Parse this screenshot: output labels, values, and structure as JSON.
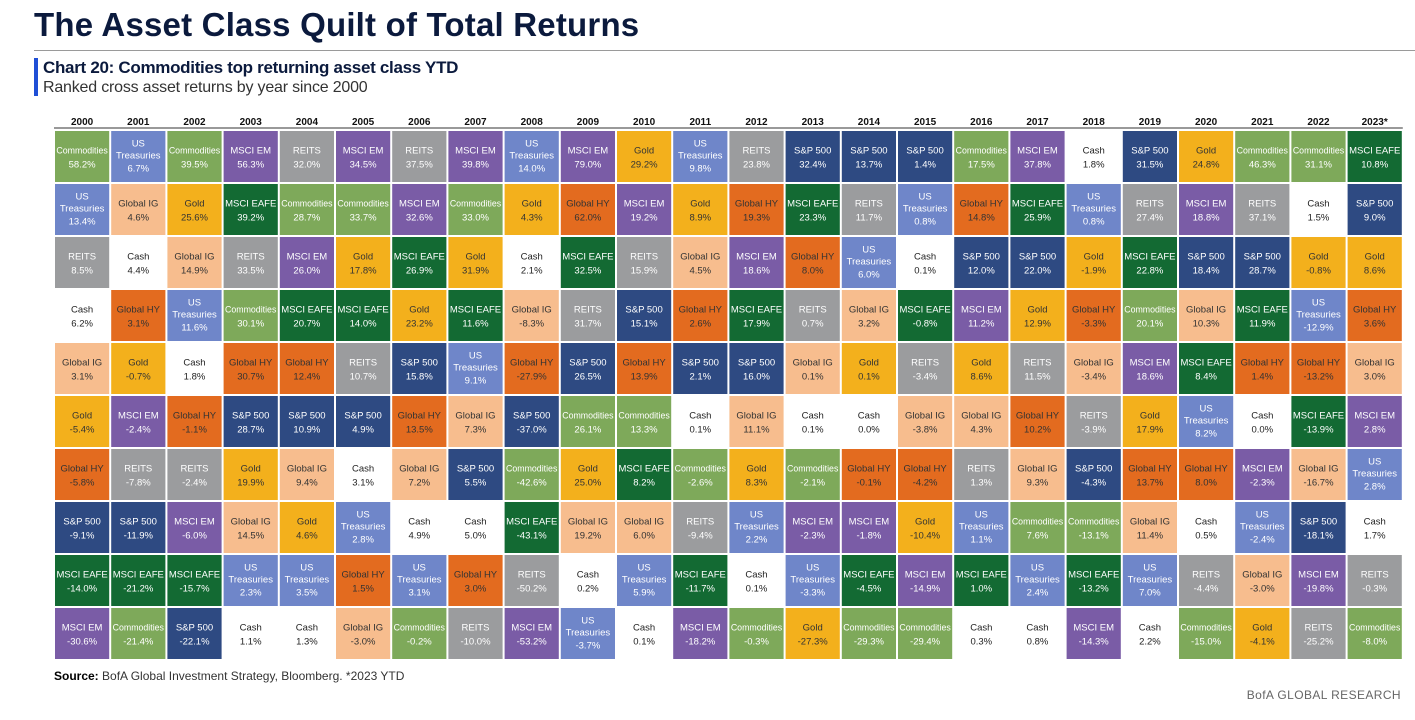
{
  "header": {
    "title": "The Asset Class Quilt of Total Returns",
    "chart_title": "Chart 20: Commodities top returning asset class YTD",
    "chart_subtitle": "Ranked cross asset returns by year since 2000"
  },
  "footer": {
    "source_label": "Source:",
    "source_text": "BofA Global Investment Strategy, Bloomberg. *2023 YTD",
    "brand": "BofA GLOBAL RESEARCH"
  },
  "colors": {
    "Commodities": "#7ea95a",
    "US Treasuries": "#6f86c9",
    "Global IG": "#f7bd8e",
    "MSCI EM": "#7a5ca6",
    "REITS": "#9b9c9e",
    "Gold": "#f3b01c",
    "Global HY": "#e36b1f",
    "Cash": "#ffffff",
    "MSCI EAFE": "#136a33",
    "S&P 500": "#2e4a82"
  },
  "text_colors": {
    "Commodities": "#ffffff",
    "US Treasuries": "#ffffff",
    "Global IG": "#333333",
    "MSCI EM": "#ffffff",
    "REITS": "#ffffff",
    "Gold": "#333333",
    "Global HY": "#333333",
    "Cash": "#222222",
    "MSCI EAFE": "#ffffff",
    "S&P 500": "#ffffff"
  },
  "chart_data": {
    "type": "table",
    "title": "Chart 20: Commodities top returning asset class YTD",
    "subtitle": "Ranked cross asset returns by year since 2000",
    "years": [
      "2000",
      "2001",
      "2002",
      "2003",
      "2004",
      "2005",
      "2006",
      "2007",
      "2008",
      "2009",
      "2010",
      "2011",
      "2012",
      "2013",
      "2014",
      "2015",
      "2016",
      "2017",
      "2018",
      "2019",
      "2020",
      "2021",
      "2022",
      "2023*"
    ],
    "columns": [
      [
        [
          "Commodities",
          "58.2%"
        ],
        [
          "US Treasuries",
          "13.4%"
        ],
        [
          "REITS",
          "8.5%"
        ],
        [
          "Cash",
          "6.2%"
        ],
        [
          "Global IG",
          "3.1%"
        ],
        [
          "Gold",
          "-5.4%"
        ],
        [
          "Global HY",
          "-5.8%"
        ],
        [
          "S&P 500",
          "-9.1%"
        ],
        [
          "MSCI EAFE",
          "-14.0%"
        ],
        [
          "MSCI EM",
          "-30.6%"
        ]
      ],
      [
        [
          "US Treasuries",
          "6.7%"
        ],
        [
          "Global IG",
          "4.6%"
        ],
        [
          "Cash",
          "4.4%"
        ],
        [
          "Global HY",
          "3.1%"
        ],
        [
          "Gold",
          "-0.7%"
        ],
        [
          "MSCI EM",
          "-2.4%"
        ],
        [
          "REITS",
          "-7.8%"
        ],
        [
          "S&P 500",
          "-11.9%"
        ],
        [
          "MSCI EAFE",
          "-21.2%"
        ],
        [
          "Commodities",
          "-21.4%"
        ]
      ],
      [
        [
          "Commodities",
          "39.5%"
        ],
        [
          "Gold",
          "25.6%"
        ],
        [
          "Global IG",
          "14.9%"
        ],
        [
          "US Treasuries",
          "11.6%"
        ],
        [
          "Cash",
          "1.8%"
        ],
        [
          "Global HY",
          "-1.1%"
        ],
        [
          "REITS",
          "-2.4%"
        ],
        [
          "MSCI EM",
          "-6.0%"
        ],
        [
          "MSCI EAFE",
          "-15.7%"
        ],
        [
          "S&P 500",
          "-22.1%"
        ]
      ],
      [
        [
          "MSCI EM",
          "56.3%"
        ],
        [
          "MSCI EAFE",
          "39.2%"
        ],
        [
          "REITS",
          "33.5%"
        ],
        [
          "Commodities",
          "30.1%"
        ],
        [
          "Global HY",
          "30.7%"
        ],
        [
          "S&P 500",
          "28.7%"
        ],
        [
          "Gold",
          "19.9%"
        ],
        [
          "Global IG",
          "14.5%"
        ],
        [
          "US Treasuries",
          "2.3%"
        ],
        [
          "Cash",
          "1.1%"
        ]
      ],
      [
        [
          "REITS",
          "32.0%"
        ],
        [
          "Commodities",
          "28.7%"
        ],
        [
          "MSCI EM",
          "26.0%"
        ],
        [
          "MSCI EAFE",
          "20.7%"
        ],
        [
          "Global HY",
          "12.4%"
        ],
        [
          "S&P 500",
          "10.9%"
        ],
        [
          "Global IG",
          "9.4%"
        ],
        [
          "Gold",
          "4.6%"
        ],
        [
          "US Treasuries",
          "3.5%"
        ],
        [
          "Cash",
          "1.3%"
        ]
      ],
      [
        [
          "MSCI EM",
          "34.5%"
        ],
        [
          "Commodities",
          "33.7%"
        ],
        [
          "Gold",
          "17.8%"
        ],
        [
          "MSCI EAFE",
          "14.0%"
        ],
        [
          "REITS",
          "10.7%"
        ],
        [
          "S&P 500",
          "4.9%"
        ],
        [
          "Cash",
          "3.1%"
        ],
        [
          "US Treasuries",
          "2.8%"
        ],
        [
          "Global HY",
          "1.5%"
        ],
        [
          "Global IG",
          "-3.0%"
        ]
      ],
      [
        [
          "REITS",
          "37.5%"
        ],
        [
          "MSCI EM",
          "32.6%"
        ],
        [
          "MSCI EAFE",
          "26.9%"
        ],
        [
          "Gold",
          "23.2%"
        ],
        [
          "S&P 500",
          "15.8%"
        ],
        [
          "Global HY",
          "13.5%"
        ],
        [
          "Global IG",
          "7.2%"
        ],
        [
          "Cash",
          "4.9%"
        ],
        [
          "US Treasuries",
          "3.1%"
        ],
        [
          "Commodities",
          "-0.2%"
        ]
      ],
      [
        [
          "MSCI EM",
          "39.8%"
        ],
        [
          "Commodities",
          "33.0%"
        ],
        [
          "Gold",
          "31.9%"
        ],
        [
          "MSCI EAFE",
          "11.6%"
        ],
        [
          "US Treasuries",
          "9.1%"
        ],
        [
          "Global IG",
          "7.3%"
        ],
        [
          "S&P 500",
          "5.5%"
        ],
        [
          "Cash",
          "5.0%"
        ],
        [
          "Global HY",
          "3.0%"
        ],
        [
          "REITS",
          "-10.0%"
        ]
      ],
      [
        [
          "US Treasuries",
          "14.0%"
        ],
        [
          "Gold",
          "4.3%"
        ],
        [
          "Cash",
          "2.1%"
        ],
        [
          "Global IG",
          "-8.3%"
        ],
        [
          "Global HY",
          "-27.9%"
        ],
        [
          "S&P 500",
          "-37.0%"
        ],
        [
          "Commodities",
          "-42.6%"
        ],
        [
          "MSCI EAFE",
          "-43.1%"
        ],
        [
          "REITS",
          "-50.2%"
        ],
        [
          "MSCI EM",
          "-53.2%"
        ]
      ],
      [
        [
          "MSCI EM",
          "79.0%"
        ],
        [
          "Global HY",
          "62.0%"
        ],
        [
          "MSCI EAFE",
          "32.5%"
        ],
        [
          "REITS",
          "31.7%"
        ],
        [
          "S&P 500",
          "26.5%"
        ],
        [
          "Commodities",
          "26.1%"
        ],
        [
          "Gold",
          "25.0%"
        ],
        [
          "Global IG",
          "19.2%"
        ],
        [
          "Cash",
          "0.2%"
        ],
        [
          "US Treasuries",
          "-3.7%"
        ]
      ],
      [
        [
          "Gold",
          "29.2%"
        ],
        [
          "MSCI EM",
          "19.2%"
        ],
        [
          "REITS",
          "15.9%"
        ],
        [
          "S&P 500",
          "15.1%"
        ],
        [
          "Global HY",
          "13.9%"
        ],
        [
          "Commodities",
          "13.3%"
        ],
        [
          "MSCI EAFE",
          "8.2%"
        ],
        [
          "Global IG",
          "6.0%"
        ],
        [
          "US Treasuries",
          "5.9%"
        ],
        [
          "Cash",
          "0.1%"
        ]
      ],
      [
        [
          "US Treasuries",
          "9.8%"
        ],
        [
          "Gold",
          "8.9%"
        ],
        [
          "Global IG",
          "4.5%"
        ],
        [
          "Global HY",
          "2.6%"
        ],
        [
          "S&P 500",
          "2.1%"
        ],
        [
          "Cash",
          "0.1%"
        ],
        [
          "Commodities",
          "-2.6%"
        ],
        [
          "REITS",
          "-9.4%"
        ],
        [
          "MSCI EAFE",
          "-11.7%"
        ],
        [
          "MSCI EM",
          "-18.2%"
        ]
      ],
      [
        [
          "REITS",
          "23.8%"
        ],
        [
          "Global HY",
          "19.3%"
        ],
        [
          "MSCI EM",
          "18.6%"
        ],
        [
          "MSCI EAFE",
          "17.9%"
        ],
        [
          "S&P 500",
          "16.0%"
        ],
        [
          "Global IG",
          "11.1%"
        ],
        [
          "Gold",
          "8.3%"
        ],
        [
          "US Treasuries",
          "2.2%"
        ],
        [
          "Cash",
          "0.1%"
        ],
        [
          "Commodities",
          "-0.3%"
        ]
      ],
      [
        [
          "S&P 500",
          "32.4%"
        ],
        [
          "MSCI EAFE",
          "23.3%"
        ],
        [
          "Global HY",
          "8.0%"
        ],
        [
          "REITS",
          "0.7%"
        ],
        [
          "Global IG",
          "0.1%"
        ],
        [
          "Cash",
          "0.1%"
        ],
        [
          "Commodities",
          "-2.1%"
        ],
        [
          "MSCI EM",
          "-2.3%"
        ],
        [
          "US Treasuries",
          "-3.3%"
        ],
        [
          "Gold",
          "-27.3%"
        ]
      ],
      [
        [
          "S&P 500",
          "13.7%"
        ],
        [
          "REITS",
          "11.7%"
        ],
        [
          "US Treasuries",
          "6.0%"
        ],
        [
          "Global IG",
          "3.2%"
        ],
        [
          "Gold",
          "0.1%"
        ],
        [
          "Cash",
          "0.0%"
        ],
        [
          "Global HY",
          "-0.1%"
        ],
        [
          "MSCI EM",
          "-1.8%"
        ],
        [
          "MSCI EAFE",
          "-4.5%"
        ],
        [
          "Commodities",
          "-29.3%"
        ]
      ],
      [
        [
          "S&P 500",
          "1.4%"
        ],
        [
          "US Treasuries",
          "0.8%"
        ],
        [
          "Cash",
          "0.1%"
        ],
        [
          "MSCI EAFE",
          "-0.8%"
        ],
        [
          "REITS",
          "-3.4%"
        ],
        [
          "Global IG",
          "-3.8%"
        ],
        [
          "Global HY",
          "-4.2%"
        ],
        [
          "Gold",
          "-10.4%"
        ],
        [
          "MSCI EM",
          "-14.9%"
        ],
        [
          "Commodities",
          "-29.4%"
        ]
      ],
      [
        [
          "Commodities",
          "17.5%"
        ],
        [
          "Global HY",
          "14.8%"
        ],
        [
          "S&P 500",
          "12.0%"
        ],
        [
          "MSCI EM",
          "11.2%"
        ],
        [
          "Gold",
          "8.6%"
        ],
        [
          "Global IG",
          "4.3%"
        ],
        [
          "REITS",
          "1.3%"
        ],
        [
          "US Treasuries",
          "1.1%"
        ],
        [
          "MSCI EAFE",
          "1.0%"
        ],
        [
          "Cash",
          "0.3%"
        ]
      ],
      [
        [
          "MSCI EM",
          "37.8%"
        ],
        [
          "MSCI EAFE",
          "25.9%"
        ],
        [
          "S&P 500",
          "22.0%"
        ],
        [
          "Gold",
          "12.9%"
        ],
        [
          "REITS",
          "11.5%"
        ],
        [
          "Global HY",
          "10.2%"
        ],
        [
          "Global IG",
          "9.3%"
        ],
        [
          "Commodities",
          "7.6%"
        ],
        [
          "US Treasuries",
          "2.4%"
        ],
        [
          "Cash",
          "0.8%"
        ]
      ],
      [
        [
          "Cash",
          "1.8%"
        ],
        [
          "US Treasuries",
          "0.8%"
        ],
        [
          "Gold",
          "-1.9%"
        ],
        [
          "Global HY",
          "-3.3%"
        ],
        [
          "Global IG",
          "-3.4%"
        ],
        [
          "REITS",
          "-3.9%"
        ],
        [
          "S&P 500",
          "-4.3%"
        ],
        [
          "Commodities",
          "-13.1%"
        ],
        [
          "MSCI EAFE",
          "-13.2%"
        ],
        [
          "MSCI EM",
          "-14.3%"
        ]
      ],
      [
        [
          "S&P 500",
          "31.5%"
        ],
        [
          "REITS",
          "27.4%"
        ],
        [
          "MSCI EAFE",
          "22.8%"
        ],
        [
          "Commodities",
          "20.1%"
        ],
        [
          "MSCI EM",
          "18.6%"
        ],
        [
          "Gold",
          "17.9%"
        ],
        [
          "Global HY",
          "13.7%"
        ],
        [
          "Global IG",
          "11.4%"
        ],
        [
          "US Treasuries",
          "7.0%"
        ],
        [
          "Cash",
          "2.2%"
        ]
      ],
      [
        [
          "Gold",
          "24.8%"
        ],
        [
          "MSCI EM",
          "18.8%"
        ],
        [
          "S&P 500",
          "18.4%"
        ],
        [
          "Global IG",
          "10.3%"
        ],
        [
          "MSCI EAFE",
          "8.4%"
        ],
        [
          "US Treasuries",
          "8.2%"
        ],
        [
          "Global HY",
          "8.0%"
        ],
        [
          "Cash",
          "0.5%"
        ],
        [
          "REITS",
          "-4.4%"
        ],
        [
          "Commodities",
          "-15.0%"
        ]
      ],
      [
        [
          "Commodities",
          "46.3%"
        ],
        [
          "REITS",
          "37.1%"
        ],
        [
          "S&P 500",
          "28.7%"
        ],
        [
          "MSCI EAFE",
          "11.9%"
        ],
        [
          "Global HY",
          "1.4%"
        ],
        [
          "Cash",
          "0.0%"
        ],
        [
          "MSCI EM",
          "-2.3%"
        ],
        [
          "US Treasuries",
          "-2.4%"
        ],
        [
          "Global IG",
          "-3.0%"
        ],
        [
          "Gold",
          "-4.1%"
        ]
      ],
      [
        [
          "Commodities",
          "31.1%"
        ],
        [
          "Cash",
          "1.5%"
        ],
        [
          "Gold",
          "-0.8%"
        ],
        [
          "US Treasuries",
          "-12.9%"
        ],
        [
          "Global HY",
          "-13.2%"
        ],
        [
          "MSCI EAFE",
          "-13.9%"
        ],
        [
          "Global IG",
          "-16.7%"
        ],
        [
          "S&P 500",
          "-18.1%"
        ],
        [
          "MSCI EM",
          "-19.8%"
        ],
        [
          "REITS",
          "-25.2%"
        ]
      ],
      [
        [
          "MSCI EAFE",
          "10.8%"
        ],
        [
          "S&P 500",
          "9.0%"
        ],
        [
          "Gold",
          "8.6%"
        ],
        [
          "Global HY",
          "3.6%"
        ],
        [
          "Global IG",
          "3.0%"
        ],
        [
          "MSCI EM",
          "2.8%"
        ],
        [
          "US Treasuries",
          "2.8%"
        ],
        [
          "Cash",
          "1.7%"
        ],
        [
          "REITS",
          "-0.3%"
        ],
        [
          "Commodities",
          "-8.0%"
        ]
      ]
    ]
  }
}
